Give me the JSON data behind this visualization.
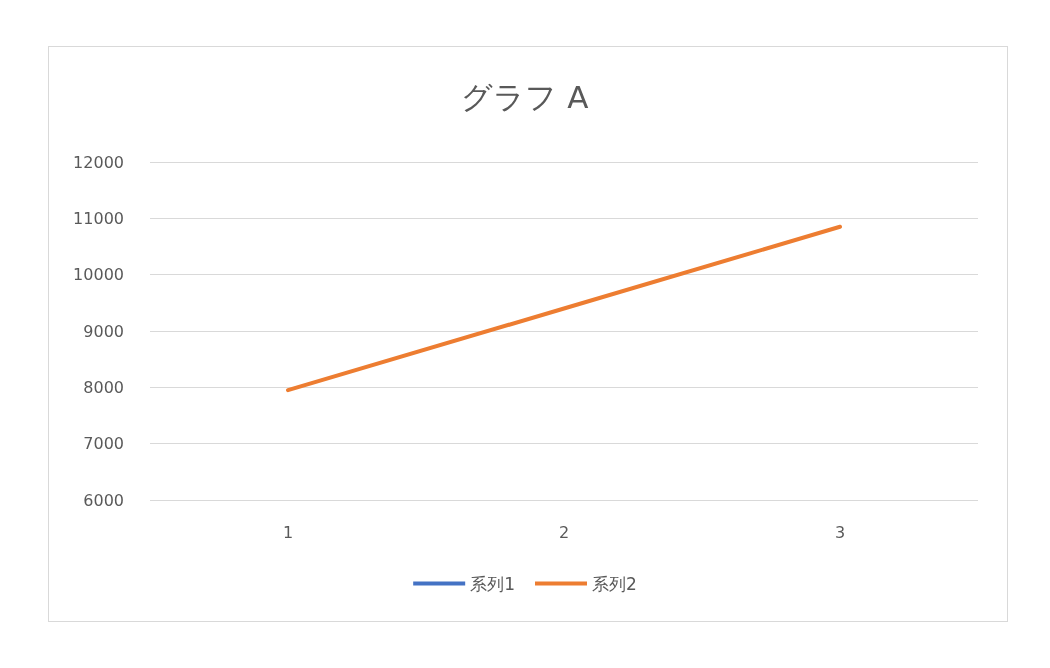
{
  "chart_data": {
    "type": "line",
    "title": "グラフ A",
    "categories": [
      "1",
      "2",
      "3"
    ],
    "series": [
      {
        "name": "系列1",
        "color": "#4472c4",
        "values": [
          null,
          null,
          null
        ]
      },
      {
        "name": "系列2",
        "color": "#ed7d31",
        "values": [
          7950,
          9400,
          10850
        ]
      }
    ],
    "ylim": [
      6000,
      12000
    ],
    "yticks": [
      6000,
      7000,
      8000,
      9000,
      10000,
      11000,
      12000
    ],
    "grid": "y",
    "legend": "bottom",
    "marker": "none",
    "line_style": "solid"
  }
}
